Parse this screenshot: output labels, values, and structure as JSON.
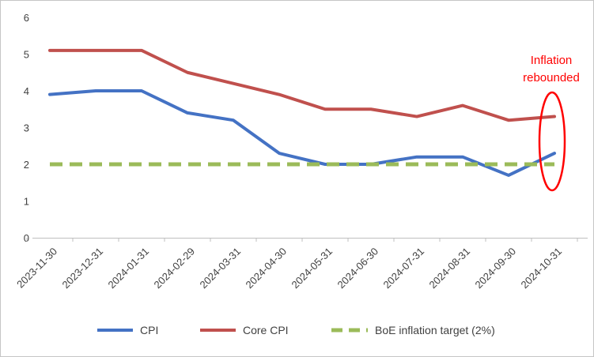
{
  "chart_data": {
    "type": "line",
    "title": "",
    "xlabel": "",
    "ylabel": "",
    "ylim": [
      0,
      6
    ],
    "yticks": [
      "0",
      "1",
      "2",
      "3",
      "4",
      "5",
      "6"
    ],
    "grid": false,
    "legend_position": "bottom",
    "categories": [
      "2023-11-30",
      "2023-12-31",
      "2024-01-31",
      "2024-02-29",
      "2024-03-31",
      "2024-04-30",
      "2024-05-31",
      "2024-06-30",
      "2024-07-31",
      "2024-08-31",
      "2024-09-30",
      "2024-10-31"
    ],
    "series": [
      {
        "name": "CPI",
        "color": "#4472C4",
        "dash": "",
        "values": [
          3.9,
          4.0,
          4.0,
          3.4,
          3.2,
          2.3,
          2.0,
          2.0,
          2.2,
          2.2,
          1.7,
          2.3
        ]
      },
      {
        "name": "Core CPI",
        "color": "#C0504D",
        "dash": "",
        "values": [
          5.1,
          5.1,
          5.1,
          4.5,
          4.2,
          3.9,
          3.5,
          3.5,
          3.3,
          3.6,
          3.2,
          3.3
        ]
      },
      {
        "name": "BoE inflation target (2%)",
        "color": "#9BBB59",
        "dash": "16 9",
        "values": [
          2,
          2,
          2,
          2,
          2,
          2,
          2,
          2,
          2,
          2,
          2,
          2
        ]
      }
    ],
    "annotation": {
      "lines": [
        "Inflation",
        "rebounded"
      ],
      "color": "#FF0000"
    }
  }
}
